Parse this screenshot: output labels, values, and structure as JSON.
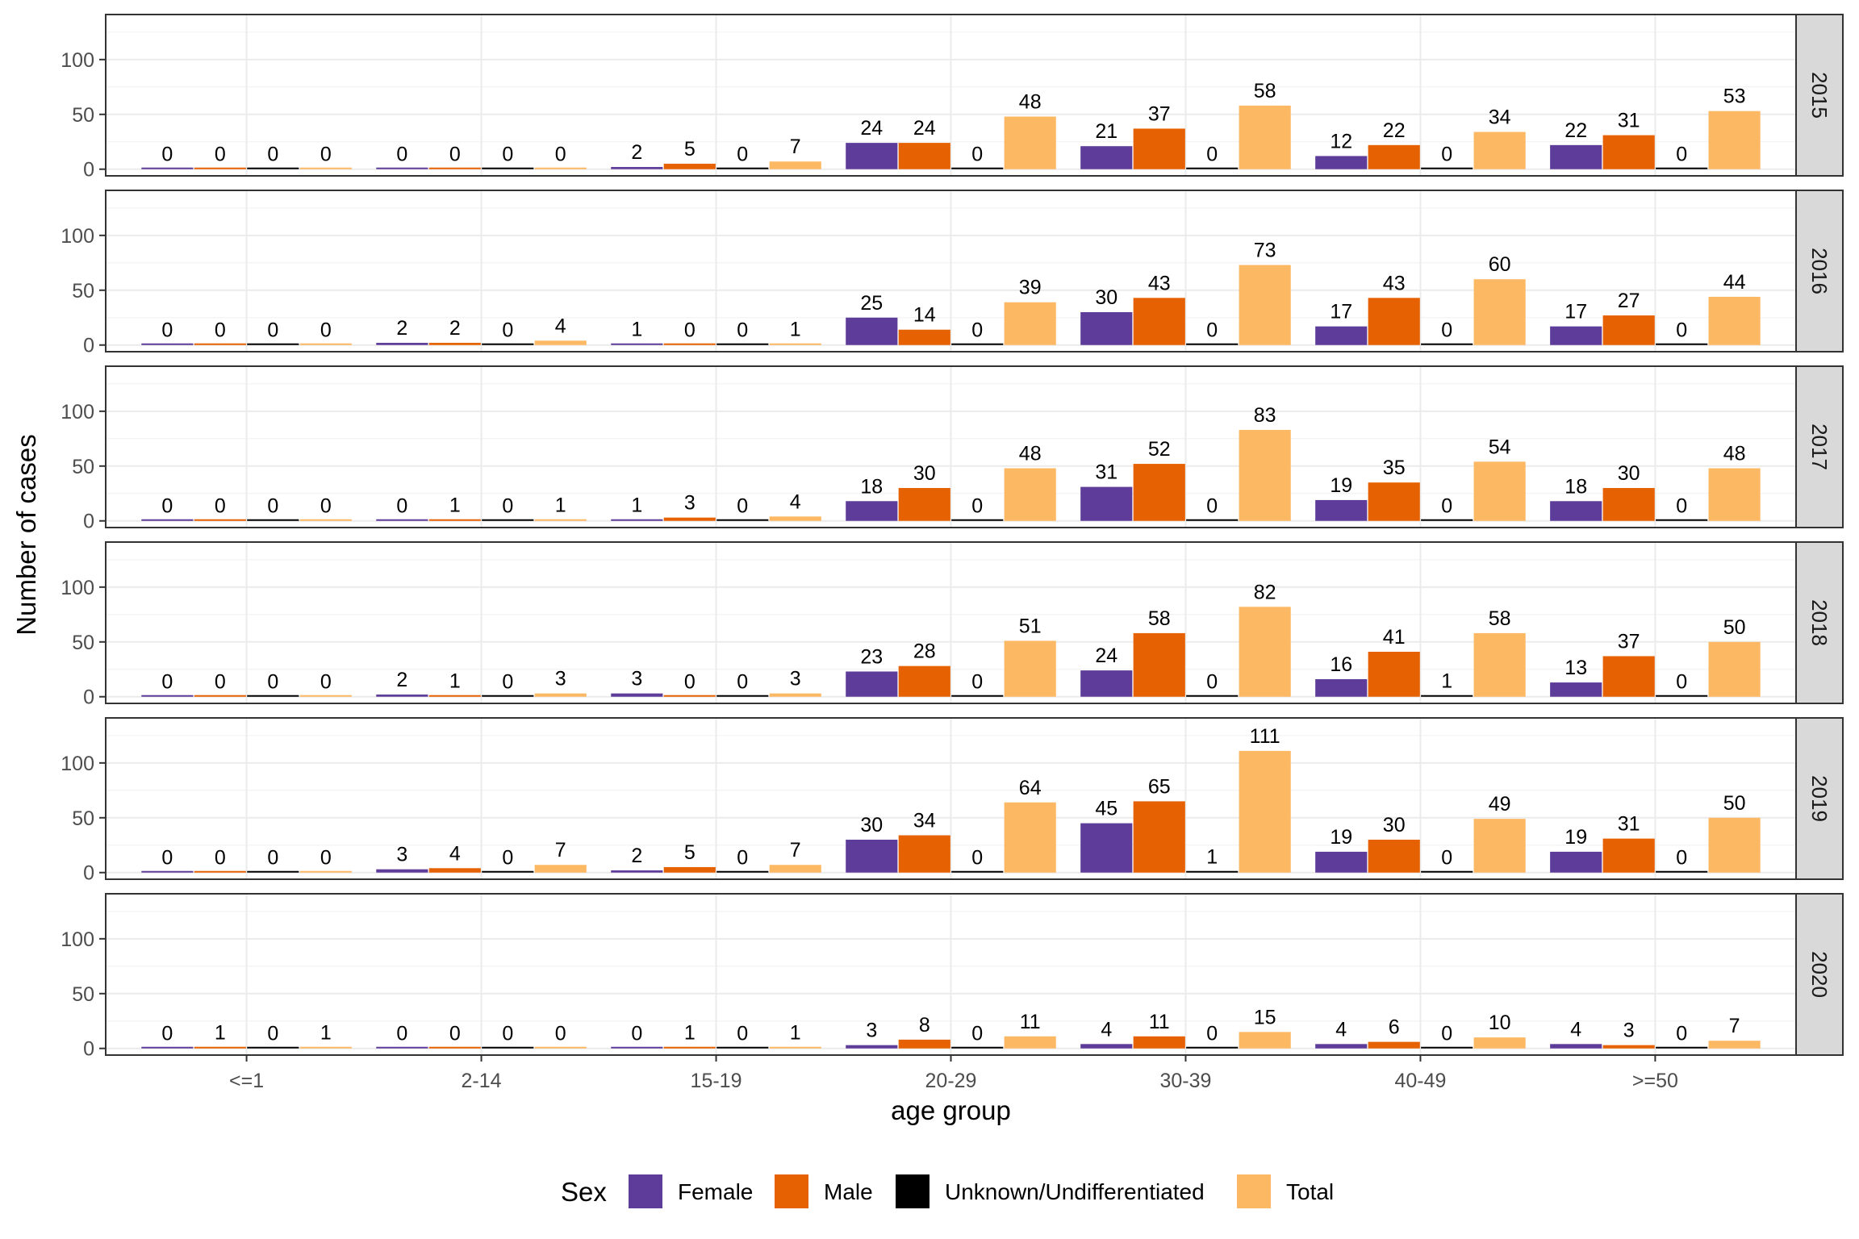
{
  "chart_data": {
    "type": "bar",
    "xlabel": "age group",
    "ylabel": "Number of cases",
    "ylim": [
      0,
      135
    ],
    "yticks": [
      0,
      50,
      100
    ],
    "categories": [
      "<=1",
      "2-14",
      "15-19",
      "20-29",
      "30-39",
      "40-49",
      ">=50"
    ],
    "legend": {
      "title": "Sex",
      "position": "bottom",
      "items": [
        "Female",
        "Male",
        "Unknown/Undifferentiated",
        "Total"
      ]
    },
    "grid": true,
    "colors": {
      "Female": "#5e3c99",
      "Male": "#e66101",
      "Unknown/Undifferentiated": "#000000",
      "Total": "#fdb863"
    },
    "panels": [
      {
        "year": "2015",
        "series": [
          {
            "name": "Female",
            "values": [
              0,
              0,
              2,
              24,
              21,
              12,
              22
            ]
          },
          {
            "name": "Male",
            "values": [
              0,
              0,
              5,
              24,
              37,
              22,
              31
            ]
          },
          {
            "name": "Unknown/Undifferentiated",
            "values": [
              0,
              0,
              0,
              0,
              0,
              0,
              0
            ]
          },
          {
            "name": "Total",
            "values": [
              0,
              0,
              7,
              48,
              58,
              34,
              53
            ]
          }
        ]
      },
      {
        "year": "2016",
        "series": [
          {
            "name": "Female",
            "values": [
              0,
              2,
              1,
              25,
              30,
              17,
              17
            ]
          },
          {
            "name": "Male",
            "values": [
              0,
              2,
              0,
              14,
              43,
              43,
              27
            ]
          },
          {
            "name": "Unknown/Undifferentiated",
            "values": [
              0,
              0,
              0,
              0,
              0,
              0,
              0
            ]
          },
          {
            "name": "Total",
            "values": [
              0,
              4,
              1,
              39,
              73,
              60,
              44
            ]
          }
        ]
      },
      {
        "year": "2017",
        "series": [
          {
            "name": "Female",
            "values": [
              0,
              0,
              1,
              18,
              31,
              19,
              18
            ]
          },
          {
            "name": "Male",
            "values": [
              0,
              1,
              3,
              30,
              52,
              35,
              30
            ]
          },
          {
            "name": "Unknown/Undifferentiated",
            "values": [
              0,
              0,
              0,
              0,
              0,
              0,
              0
            ]
          },
          {
            "name": "Total",
            "values": [
              0,
              1,
              4,
              48,
              83,
              54,
              48
            ]
          }
        ]
      },
      {
        "year": "2018",
        "series": [
          {
            "name": "Female",
            "values": [
              0,
              2,
              3,
              23,
              24,
              16,
              13
            ]
          },
          {
            "name": "Male",
            "values": [
              0,
              1,
              0,
              28,
              58,
              41,
              37
            ]
          },
          {
            "name": "Unknown/Undifferentiated",
            "values": [
              0,
              0,
              0,
              0,
              0,
              1,
              0
            ]
          },
          {
            "name": "Total",
            "values": [
              0,
              3,
              3,
              51,
              82,
              58,
              50
            ]
          }
        ]
      },
      {
        "year": "2019",
        "series": [
          {
            "name": "Female",
            "values": [
              0,
              3,
              2,
              30,
              45,
              19,
              19
            ]
          },
          {
            "name": "Male",
            "values": [
              0,
              4,
              5,
              34,
              65,
              30,
              31
            ]
          },
          {
            "name": "Unknown/Undifferentiated",
            "values": [
              0,
              0,
              0,
              0,
              1,
              0,
              0
            ]
          },
          {
            "name": "Total",
            "values": [
              0,
              7,
              7,
              64,
              111,
              49,
              50
            ]
          }
        ]
      },
      {
        "year": "2020",
        "series": [
          {
            "name": "Female",
            "values": [
              0,
              0,
              0,
              3,
              4,
              4,
              4
            ]
          },
          {
            "name": "Male",
            "values": [
              1,
              0,
              1,
              8,
              11,
              6,
              3
            ]
          },
          {
            "name": "Unknown/Undifferentiated",
            "values": [
              0,
              0,
              0,
              0,
              0,
              0,
              0
            ]
          },
          {
            "name": "Total",
            "values": [
              1,
              0,
              1,
              11,
              15,
              10,
              7
            ]
          }
        ]
      }
    ]
  }
}
